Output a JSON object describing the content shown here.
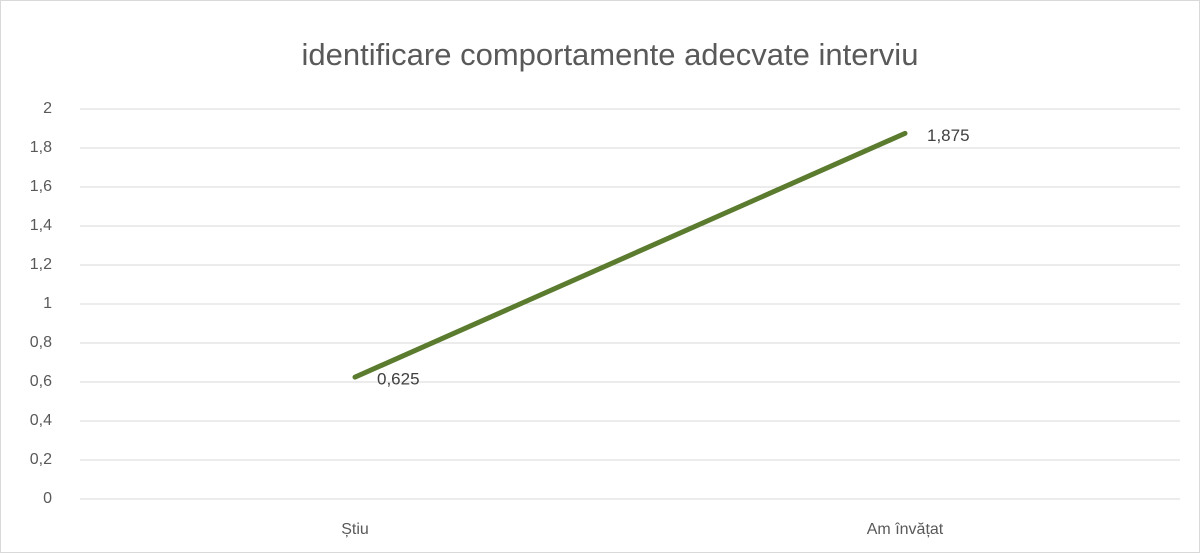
{
  "chart_data": {
    "type": "line",
    "title": "identificare comportamente adecvate interviu",
    "categories": [
      "Știu",
      "Am învățat"
    ],
    "values": [
      0.625,
      1.875
    ],
    "value_labels": [
      "0,625",
      "1,875"
    ],
    "color": "#5b7b2e",
    "ylim": [
      0,
      2
    ],
    "yticks": [
      0,
      {
        "value": 0.2,
        "label": "0,2"
      },
      {
        "value": 0.4,
        "label": "0,4"
      },
      {
        "value": 0.6,
        "label": "0,6"
      },
      {
        "value": 0.8,
        "label": "0,8"
      },
      1,
      {
        "value": 1.2,
        "label": "1,2"
      },
      {
        "value": 1.4,
        "label": "1,4"
      },
      {
        "value": 1.6,
        "label": "1,6"
      },
      {
        "value": 1.8,
        "label": "1,8"
      },
      2
    ],
    "grid": true
  }
}
